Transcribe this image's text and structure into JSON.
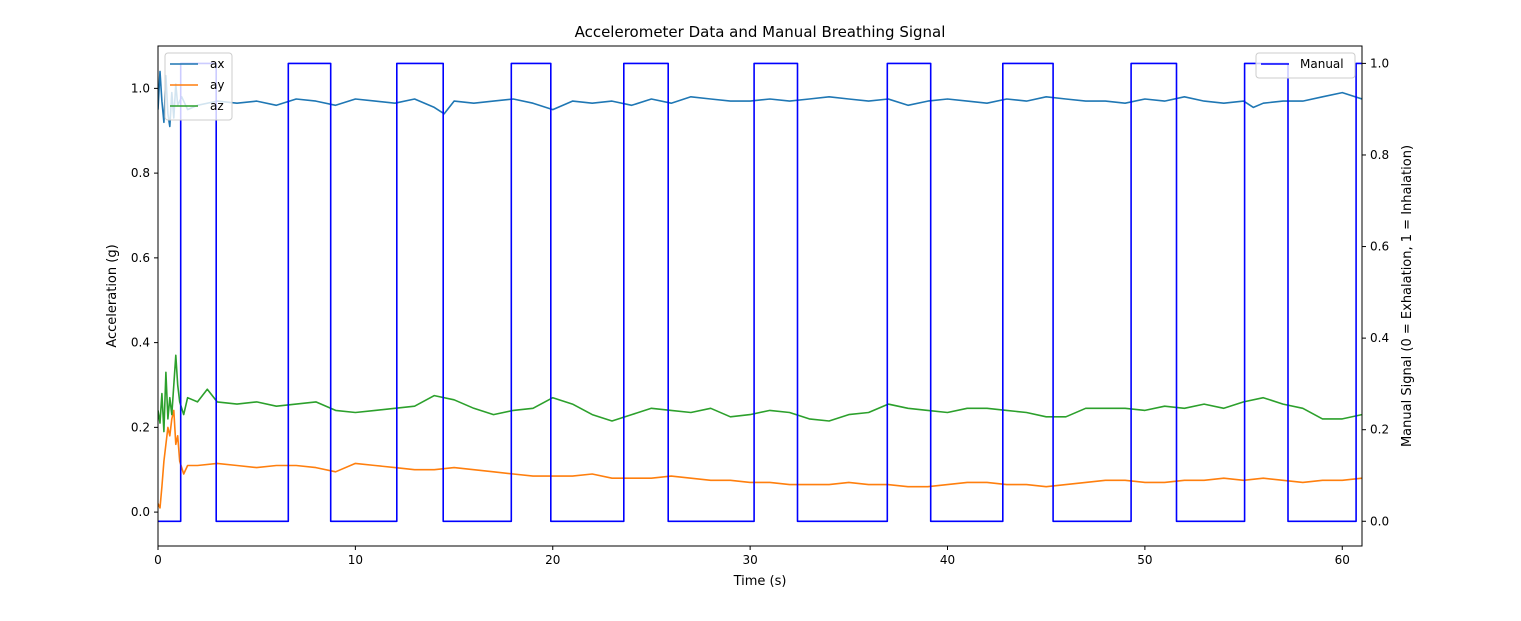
{
  "chart_data": {
    "type": "line",
    "title": "Accelerometer Data and Manual Breathing Signal",
    "xlabel": "Time (s)",
    "ylabel": "Acceleration (g)",
    "y2label": "Manual Signal (0 = Exhalation, 1 = Inhalation)",
    "xlim": [
      0,
      61
    ],
    "ylim": [
      -0.08,
      1.1
    ],
    "y2lim": [
      -0.054,
      1.038
    ],
    "xticks": [
      0,
      10,
      20,
      30,
      40,
      50,
      60
    ],
    "yticks": [
      0.0,
      0.2,
      0.4,
      0.6,
      0.8,
      1.0
    ],
    "y2ticks": [
      0.0,
      0.2,
      0.4,
      0.6,
      0.8,
      1.0
    ],
    "xtick_labels": [
      "0",
      "10",
      "20",
      "30",
      "40",
      "50",
      "60"
    ],
    "ytick_labels": [
      "0.0",
      "0.2",
      "0.4",
      "0.6",
      "0.8",
      "1.0"
    ],
    "y2tick_labels": [
      "0.0",
      "0.2",
      "0.4",
      "0.6",
      "0.8",
      "1.0"
    ],
    "grid": false,
    "legend_left_placement": "upper-left",
    "legend_right_placement": "upper-right",
    "series": [
      {
        "name": "ax",
        "axis": "left",
        "color": "#1f77b4",
        "x": [
          0,
          0.1,
          0.2,
          0.3,
          0.4,
          0.5,
          0.6,
          0.7,
          0.8,
          0.9,
          1.0,
          1.2,
          1.5,
          2,
          3,
          4,
          5,
          6,
          7,
          8,
          9,
          10,
          11,
          12,
          13,
          14,
          14.5,
          15,
          16,
          17,
          18,
          19,
          20,
          21,
          22,
          23,
          24,
          25,
          26,
          27,
          28,
          29,
          30,
          31,
          32,
          33,
          34,
          35,
          36,
          37,
          38,
          39,
          40,
          41,
          42,
          43,
          44,
          45,
          46,
          47,
          48,
          49,
          50,
          51,
          52,
          53,
          54,
          55,
          55.5,
          56,
          57,
          58,
          59,
          60,
          61
        ],
        "y": [
          0.95,
          1.04,
          0.97,
          0.92,
          1.03,
          0.94,
          0.91,
          0.99,
          0.93,
          1.01,
          0.96,
          0.98,
          0.95,
          0.96,
          0.97,
          0.965,
          0.97,
          0.96,
          0.975,
          0.97,
          0.96,
          0.975,
          0.97,
          0.965,
          0.975,
          0.955,
          0.94,
          0.97,
          0.965,
          0.97,
          0.975,
          0.965,
          0.95,
          0.97,
          0.965,
          0.97,
          0.96,
          0.975,
          0.965,
          0.98,
          0.975,
          0.97,
          0.97,
          0.975,
          0.97,
          0.975,
          0.98,
          0.975,
          0.97,
          0.975,
          0.96,
          0.97,
          0.975,
          0.97,
          0.965,
          0.975,
          0.97,
          0.98,
          0.975,
          0.97,
          0.97,
          0.965,
          0.975,
          0.97,
          0.98,
          0.97,
          0.965,
          0.97,
          0.955,
          0.965,
          0.97,
          0.97,
          0.98,
          0.99,
          0.975
        ]
      },
      {
        "name": "ay",
        "axis": "left",
        "color": "#ff7f0e",
        "x": [
          0,
          0.1,
          0.2,
          0.3,
          0.4,
          0.5,
          0.6,
          0.7,
          0.8,
          0.9,
          1.0,
          1.1,
          1.3,
          1.5,
          2,
          3,
          4,
          5,
          6,
          7,
          8,
          9,
          10,
          11,
          12,
          13,
          14,
          15,
          16,
          17,
          18,
          19,
          20,
          21,
          22,
          23,
          24,
          25,
          26,
          27,
          28,
          29,
          30,
          31,
          32,
          33,
          34,
          35,
          36,
          37,
          38,
          39,
          40,
          41,
          42,
          43,
          44,
          45,
          46,
          47,
          48,
          49,
          50,
          51,
          52,
          53,
          54,
          55,
          56,
          57,
          58,
          59,
          60,
          61
        ],
        "y": [
          0.02,
          0.01,
          0.06,
          0.12,
          0.16,
          0.2,
          0.18,
          0.22,
          0.24,
          0.16,
          0.18,
          0.12,
          0.09,
          0.11,
          0.11,
          0.115,
          0.11,
          0.105,
          0.11,
          0.11,
          0.105,
          0.095,
          0.115,
          0.11,
          0.105,
          0.1,
          0.1,
          0.105,
          0.1,
          0.095,
          0.09,
          0.085,
          0.085,
          0.085,
          0.09,
          0.08,
          0.08,
          0.08,
          0.085,
          0.08,
          0.075,
          0.075,
          0.07,
          0.07,
          0.065,
          0.065,
          0.065,
          0.07,
          0.065,
          0.065,
          0.06,
          0.06,
          0.065,
          0.07,
          0.07,
          0.065,
          0.065,
          0.06,
          0.065,
          0.07,
          0.075,
          0.075,
          0.07,
          0.07,
          0.075,
          0.075,
          0.08,
          0.075,
          0.08,
          0.075,
          0.07,
          0.075,
          0.075,
          0.08
        ]
      },
      {
        "name": "az",
        "axis": "left",
        "color": "#2ca02c",
        "x": [
          0,
          0.1,
          0.2,
          0.3,
          0.4,
          0.5,
          0.6,
          0.7,
          0.8,
          0.9,
          1.0,
          1.1,
          1.3,
          1.5,
          2,
          2.5,
          3,
          4,
          5,
          6,
          7,
          8,
          9,
          10,
          11,
          12,
          13,
          14,
          15,
          16,
          17,
          18,
          19,
          20,
          21,
          22,
          23,
          24,
          25,
          26,
          27,
          28,
          29,
          30,
          31,
          32,
          33,
          34,
          35,
          36,
          37,
          38,
          39,
          40,
          41,
          42,
          43,
          44,
          45,
          46,
          47,
          48,
          49,
          50,
          51,
          52,
          53,
          54,
          55,
          56,
          57,
          58,
          59,
          60,
          61
        ],
        "y": [
          0.24,
          0.21,
          0.28,
          0.19,
          0.33,
          0.22,
          0.27,
          0.23,
          0.3,
          0.37,
          0.3,
          0.26,
          0.23,
          0.27,
          0.26,
          0.29,
          0.26,
          0.255,
          0.26,
          0.25,
          0.255,
          0.26,
          0.24,
          0.235,
          0.24,
          0.245,
          0.25,
          0.275,
          0.265,
          0.245,
          0.23,
          0.24,
          0.245,
          0.27,
          0.255,
          0.23,
          0.215,
          0.23,
          0.245,
          0.24,
          0.235,
          0.245,
          0.225,
          0.23,
          0.24,
          0.235,
          0.22,
          0.215,
          0.23,
          0.235,
          0.255,
          0.245,
          0.24,
          0.235,
          0.245,
          0.245,
          0.24,
          0.235,
          0.225,
          0.225,
          0.245,
          0.245,
          0.245,
          0.24,
          0.25,
          0.245,
          0.255,
          0.245,
          0.26,
          0.27,
          0.255,
          0.245,
          0.22,
          0.22,
          0.23
        ]
      },
      {
        "name": "Manual",
        "axis": "right",
        "color": "#0000ff",
        "step": true,
        "x": [
          0,
          1.15,
          1.15,
          2.95,
          2.95,
          6.6,
          6.6,
          8.75,
          8.75,
          12.1,
          12.1,
          14.45,
          14.45,
          17.9,
          17.9,
          19.9,
          19.9,
          23.6,
          23.6,
          25.85,
          25.85,
          30.2,
          30.2,
          32.4,
          32.4,
          36.95,
          36.95,
          39.15,
          39.15,
          42.8,
          42.8,
          45.35,
          45.35,
          49.3,
          49.3,
          51.6,
          51.6,
          55.05,
          55.05,
          57.25,
          57.25,
          60.7,
          60.7,
          61
        ],
        "y": [
          0,
          0,
          1,
          1,
          0,
          0,
          1,
          1,
          0,
          0,
          1,
          1,
          0,
          0,
          1,
          1,
          0,
          0,
          1,
          1,
          0,
          0,
          1,
          1,
          0,
          0,
          1,
          1,
          0,
          0,
          1,
          1,
          0,
          0,
          1,
          1,
          0,
          0,
          1,
          1,
          0,
          0,
          1,
          1
        ]
      }
    ]
  }
}
